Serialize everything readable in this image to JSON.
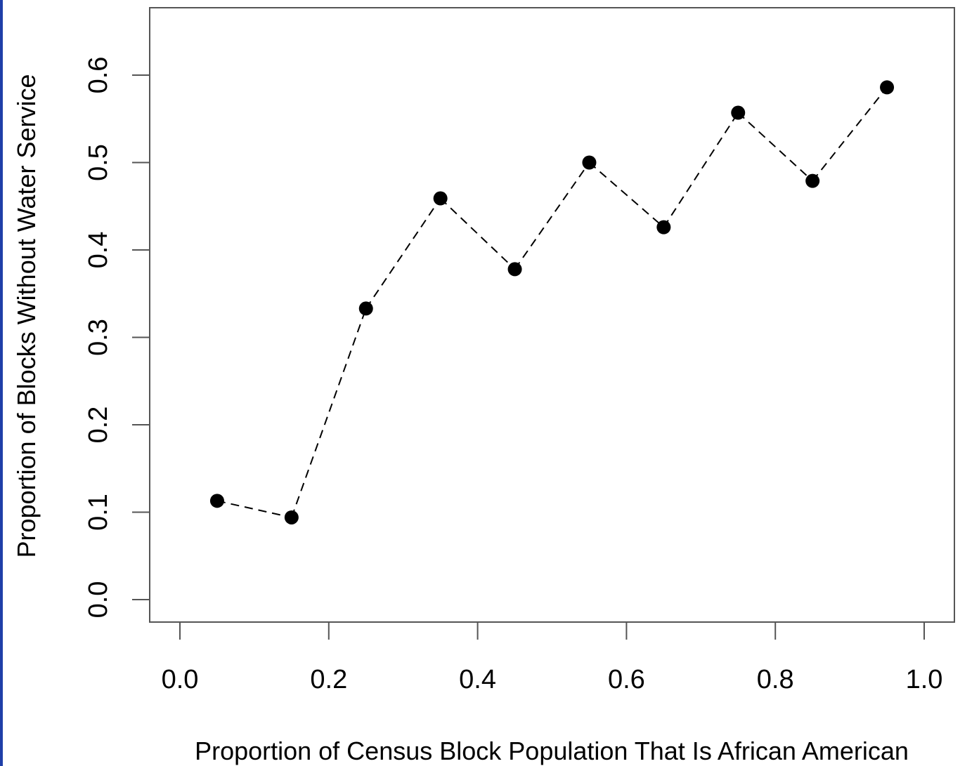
{
  "chart_data": {
    "type": "scatter",
    "title": "",
    "xlabel": "Proportion of Census Block Population That Is African American",
    "ylabel": "Proportion of Blocks Without Water Service",
    "xlim": [
      0.0,
      1.0
    ],
    "ylim": [
      0.0,
      0.6
    ],
    "x_ticks": [
      "0.0",
      "0.2",
      "0.4",
      "0.6",
      "0.8",
      "1.0"
    ],
    "y_ticks": [
      "0.0",
      "0.1",
      "0.2",
      "0.3",
      "0.4",
      "0.5",
      "0.6"
    ],
    "grid": false,
    "legend": "none",
    "connector": "dashed",
    "x": [
      0.05,
      0.15,
      0.25,
      0.35,
      0.45,
      0.55,
      0.65,
      0.75,
      0.85,
      0.95
    ],
    "y": [
      0.113,
      0.094,
      0.333,
      0.459,
      0.378,
      0.5,
      0.426,
      0.557,
      0.479,
      0.586
    ],
    "colors": {
      "points": "#000000",
      "line": "#000000",
      "accent_strip": "#1f3fa8"
    }
  }
}
